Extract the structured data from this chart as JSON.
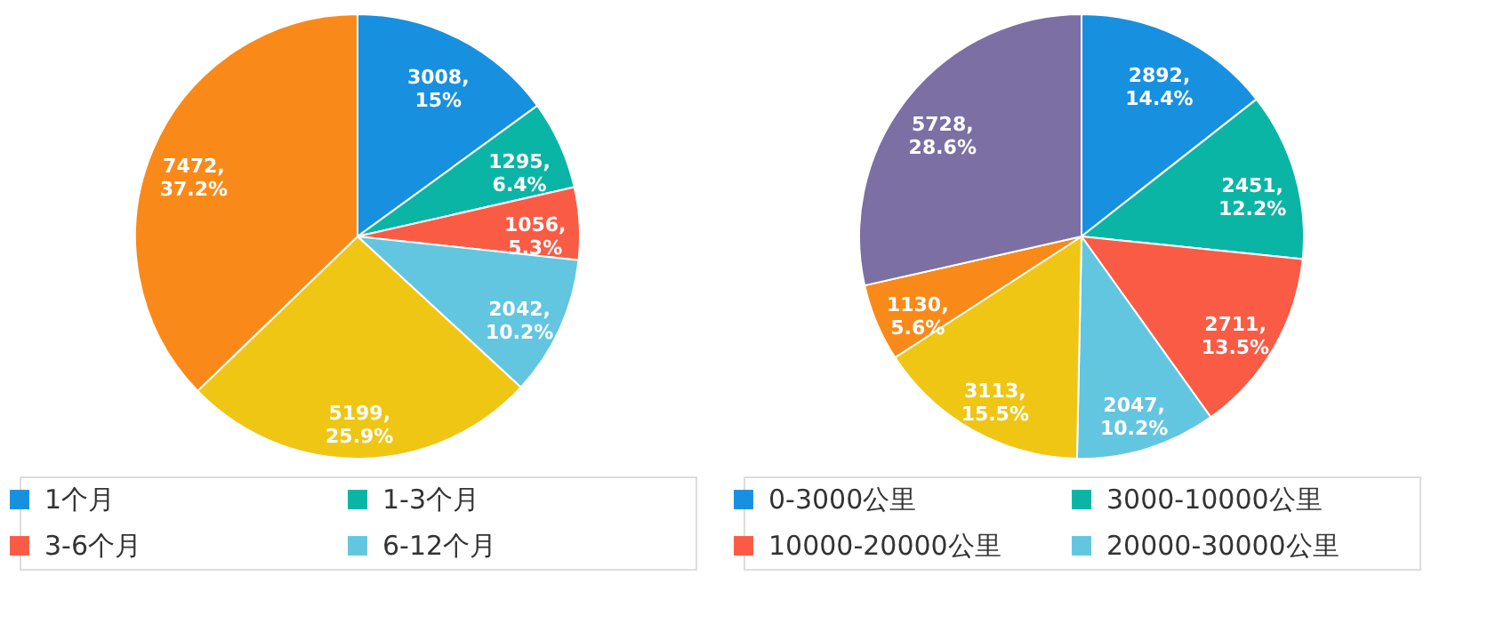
{
  "chart_data": [
    {
      "type": "pie",
      "categories": [
        "1个月",
        "1-3个月",
        "3-6个月",
        "6-12个月",
        null,
        null
      ],
      "values": [
        3008,
        1295,
        1056,
        2042,
        5199,
        7472
      ],
      "colors": [
        "#1890e0",
        "#0bb5a5",
        "#fa5b45",
        "#62c6e0",
        "#efc614",
        "#f98a19"
      ],
      "value_labels": [
        "3008,\n15%",
        "1295,\n6.4%",
        "1056,\n5.3%",
        "2042,\n10.2%",
        "5199,\n25.9%",
        "7472,\n37.2%"
      ],
      "legend": "bottom"
    },
    {
      "type": "pie",
      "categories": [
        "0-3000公里",
        "3000-10000公里",
        "10000-20000公里",
        "20000-30000公里",
        null,
        null,
        null
      ],
      "values": [
        2892,
        2451,
        2711,
        2047,
        3113,
        1130,
        5728
      ],
      "colors": [
        "#1890e0",
        "#0bb5a5",
        "#fa5b45",
        "#62c6e0",
        "#efc614",
        "#f98a19",
        "#7b6fa3"
      ],
      "value_labels": [
        "2892,\n14.4%",
        "2451,\n12.2%",
        "2711,\n13.5%",
        "2047,\n10.2%",
        "3113,\n15.5%",
        "1130,\n5.6%",
        "5728,\n28.6%"
      ],
      "legend": "bottom"
    }
  ]
}
